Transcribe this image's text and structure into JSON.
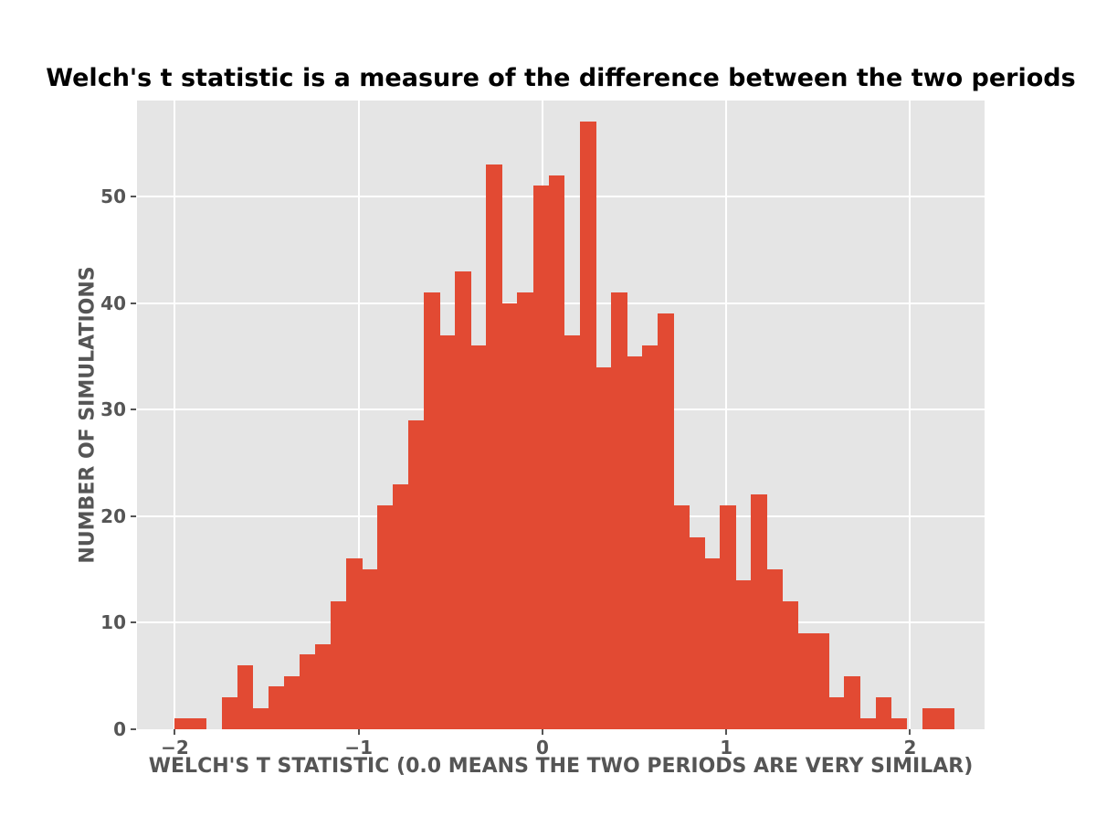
{
  "chart": {
    "title": "Welch's t statistic is a measure of the difference between the two periods",
    "xlabel": "WELCH'S T STATISTIC (0.0 MEANS THE TWO PERIODS ARE VERY SIMILAR)",
    "ylabel": "NUMBER OF SIMULATIONS"
  },
  "chart_data": {
    "type": "bar",
    "subtype": "histogram",
    "title": "Welch's t statistic is a measure of the difference between the two periods",
    "xlabel": "WELCH'S T STATISTIC (0.0 MEANS THE TWO PERIODS ARE VERY SIMILAR)",
    "ylabel": "NUMBER OF SIMULATIONS",
    "bin_start": -2.0,
    "bin_width": 0.0847,
    "bin_counts": [
      1,
      1,
      0,
      3,
      6,
      2,
      4,
      5,
      7,
      8,
      12,
      16,
      15,
      21,
      23,
      29,
      41,
      37,
      43,
      36,
      53,
      40,
      41,
      51,
      52,
      37,
      57,
      34,
      41,
      35,
      36,
      39,
      21,
      18,
      16,
      21,
      14,
      22,
      15,
      12,
      9,
      9,
      3,
      5,
      1,
      3,
      1,
      0,
      2,
      2
    ],
    "total_simulations": 1000,
    "x_ticks": [
      {
        "value": -2,
        "label": "−2"
      },
      {
        "value": -1,
        "label": "−1"
      },
      {
        "value": 0,
        "label": "0"
      },
      {
        "value": 1,
        "label": "1"
      },
      {
        "value": 2,
        "label": "2"
      }
    ],
    "y_ticks": [
      {
        "value": 0,
        "label": "0"
      },
      {
        "value": 10,
        "label": "10"
      },
      {
        "value": 20,
        "label": "20"
      },
      {
        "value": 30,
        "label": "30"
      },
      {
        "value": 40,
        "label": "40"
      },
      {
        "value": 50,
        "label": "50"
      }
    ],
    "xlim": [
      -2.206,
      2.405
    ],
    "ylim": [
      0,
      59
    ],
    "grid": true,
    "legend": "none",
    "colors": {
      "bar": "#E24A33",
      "plot_background": "#E5E5E5",
      "gridline": "#FFFFFF",
      "tick_text": "#555555",
      "axis_label_text": "#555555",
      "title_text": "#000000",
      "figure_background": "#FFFFFF"
    }
  }
}
